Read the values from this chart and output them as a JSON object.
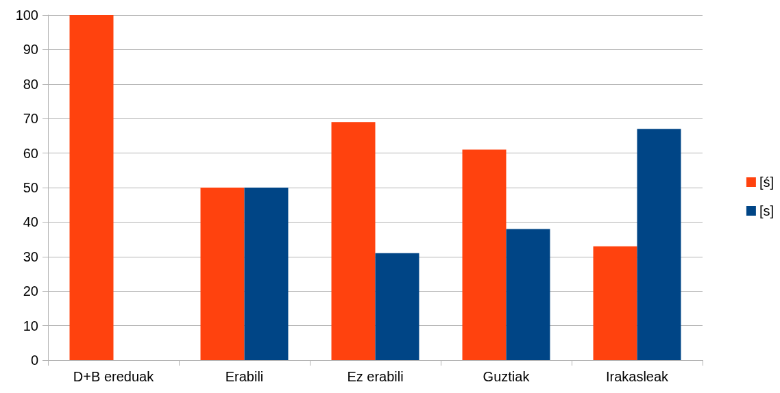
{
  "chart_data": {
    "type": "bar",
    "categories": [
      "D+B ereduak",
      "Erabili",
      "Ez erabili",
      "Guztiak",
      "Irakasleak"
    ],
    "series": [
      {
        "name": "[ś]",
        "color": "#ff420e",
        "values": [
          100,
          50,
          69,
          61,
          33
        ]
      },
      {
        "name": "[s]",
        "color": "#004586",
        "values": [
          0,
          50,
          31,
          38,
          67
        ]
      }
    ],
    "ylim": [
      0,
      100
    ],
    "yticks": [
      0,
      10,
      20,
      30,
      40,
      50,
      60,
      70,
      80,
      90,
      100
    ],
    "grid": "y",
    "legend": "right"
  }
}
